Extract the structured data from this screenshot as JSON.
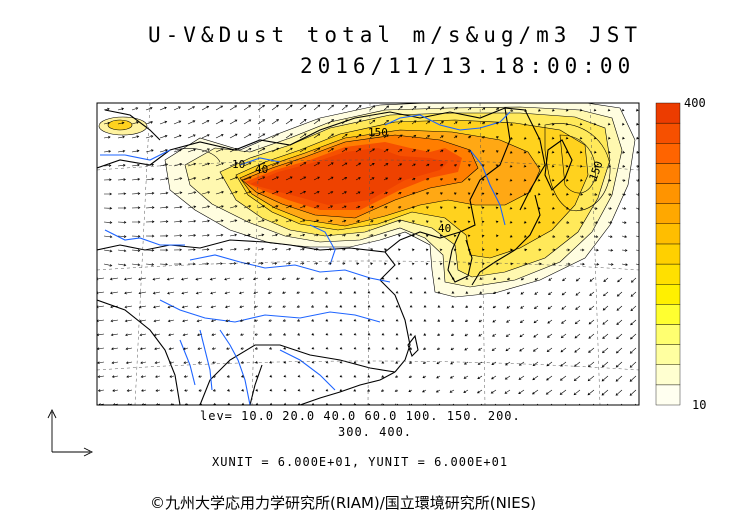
{
  "title": {
    "line1": "U-V&Dust total m/s&ug/m3 JST",
    "line2": "2016/11/13.18:00:00"
  },
  "map": {
    "contour_labels": [
      "150",
      "40",
      "10",
      "40",
      "150",
      "10"
    ]
  },
  "legend": {
    "max_label": "400",
    "min_label": "10",
    "colors": [
      "#fffff0",
      "#ffffd0",
      "#ffffa0",
      "#ffff70",
      "#ffff30",
      "#fff000",
      "#ffe000",
      "#ffd000",
      "#ffbe00",
      "#ffa800",
      "#ff9400",
      "#ff7e00",
      "#ff6400",
      "#f65000",
      "#ec3c00"
    ]
  },
  "footer": {
    "lev_line1": "lev= 10.0 20.0 40.0 60.0 100. 150. 200.",
    "lev_line2": "300. 400.",
    "units": "XUNIT = 6.000E+01, YUNIT = 6.000E+01"
  },
  "copyright": "©九州大学応用力学研究所(RIAM)/国立環境研究所(NIES)",
  "colors": {
    "coast": "#000000",
    "river": "#1e64ff",
    "dust_high": "#ec3c00",
    "dust_low": "#fffff0"
  }
}
